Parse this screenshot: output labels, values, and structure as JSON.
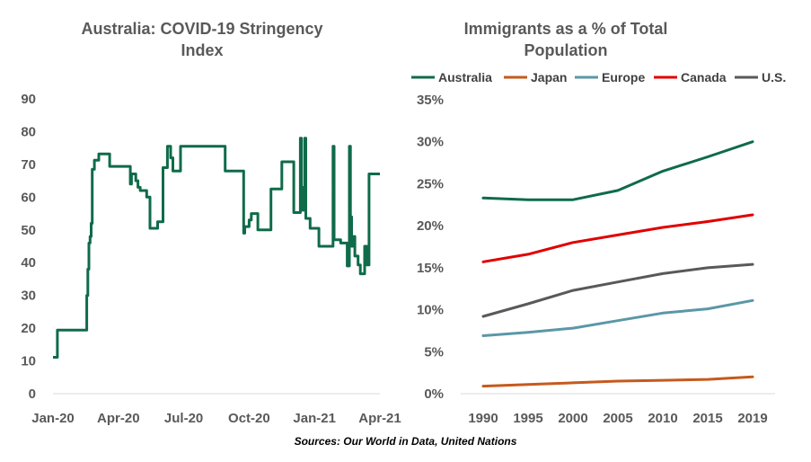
{
  "charts": {
    "source_note": "Sources: Our World in Data, United Nations"
  },
  "chart_data": [
    {
      "type": "line",
      "title": "Australia: COVID-19 Stringency Index",
      "title_lines": [
        "Australia: COVID-19 Stringency",
        "Index"
      ],
      "xlabel": "",
      "ylabel": "",
      "x_tick_labels": [
        "Jan-20",
        "Apr-20",
        "Jul-20",
        "Oct-20",
        "Jan-21",
        "Apr-21"
      ],
      "ylim": [
        0,
        90
      ],
      "y_ticks": [
        0,
        10,
        20,
        30,
        40,
        50,
        60,
        70,
        80,
        90
      ],
      "grid": false,
      "color": "#0f6b4a",
      "series": [
        {
          "x_months": [
            0.0,
            0.15,
            0.2,
            0.25,
            1.5,
            1.55,
            1.6,
            1.65,
            1.7,
            1.75,
            1.8,
            1.85,
            1.9,
            2.0,
            2.1,
            2.2,
            2.5,
            2.6,
            3.5,
            3.55,
            3.6,
            3.7,
            3.8,
            3.9,
            4.0,
            4.1,
            4.3,
            4.45,
            4.5,
            4.6,
            4.7,
            4.8,
            4.9,
            5.0,
            5.05,
            5.2,
            5.25,
            5.3,
            5.4,
            5.5,
            5.6,
            5.8,
            5.85,
            6.0,
            6.05,
            6.1,
            6.3,
            6.5,
            6.6,
            7.9,
            8.0,
            8.2,
            8.3,
            8.4,
            8.5,
            8.7,
            8.75,
            8.8,
            8.9,
            9.0,
            9.1,
            9.2,
            9.3,
            9.4,
            9.5,
            10.0,
            10.05,
            10.1,
            10.2,
            10.3,
            10.5,
            11.0,
            11.05,
            11.15,
            11.2,
            11.25,
            11.3,
            11.35,
            11.4,
            11.45,
            11.5,
            11.55,
            11.6,
            11.65,
            11.7,
            11.8,
            12.0,
            12.2,
            12.5,
            12.8,
            12.85,
            12.9,
            13.0,
            13.2,
            13.5,
            13.6,
            13.65,
            13.7,
            13.75,
            13.8,
            13.85,
            14.0,
            14.05,
            14.1,
            14.15,
            14.2,
            14.3,
            14.4,
            14.5,
            14.55,
            14.6,
            14.7,
            14.75,
            14.8,
            14.9,
            15.0
          ],
          "values": [
            11.1,
            11.1,
            19.4,
            19.4,
            19.4,
            30,
            38,
            46,
            48,
            52,
            68.5,
            68.5,
            71.3,
            71.3,
            73.2,
            73.2,
            73.2,
            69.4,
            69.4,
            64.0,
            67.1,
            67.1,
            65.0,
            63.0,
            62.0,
            62.0,
            60.0,
            50.5,
            50.5,
            50.5,
            50.5,
            52.5,
            52.5,
            52.5,
            69.0,
            69.0,
            75.5,
            75.5,
            72.0,
            68.0,
            68.0,
            68.0,
            75.5,
            75.5,
            75.5,
            75.5,
            75.5,
            75.5,
            75.5,
            68.0,
            68.0,
            68.0,
            68.0,
            68.0,
            68.0,
            68.0,
            49.0,
            51.0,
            51.0,
            53.0,
            55.0,
            55.0,
            55.0,
            50.0,
            50.0,
            62.5,
            62.5,
            62.5,
            62.5,
            62.5,
            70.8,
            70.8,
            55.3,
            55.3,
            55.3,
            55.3,
            55.3,
            78.0,
            63.0,
            56.0,
            56.0,
            78.0,
            53.5,
            53.5,
            53.5,
            50.5,
            50.5,
            45.0,
            45.0,
            45.0,
            75.5,
            47.0,
            47.0,
            46.0,
            39.0,
            75.5,
            54.0,
            45.0,
            48.0,
            48.0,
            42.0,
            39.3,
            39.3,
            36.6,
            36.6,
            36.6,
            45.0,
            39.3,
            67.1,
            67.1,
            67.1,
            67.1,
            67.1,
            67.1,
            67.1,
            67.1
          ]
        }
      ]
    },
    {
      "type": "line",
      "title": "Immigrants as a % of Total Population",
      "title_lines": [
        "Immigrants as a % of Total",
        "Population"
      ],
      "xlabel": "",
      "ylabel": "",
      "categories": [
        "1990",
        "1995",
        "2000",
        "2005",
        "2010",
        "2015",
        "2019"
      ],
      "ylim": [
        0,
        35
      ],
      "y_ticks": [
        0,
        5,
        10,
        15,
        20,
        25,
        30,
        35
      ],
      "y_tick_labels": [
        "0%",
        "5%",
        "10%",
        "15%",
        "20%",
        "25%",
        "30%",
        "35%"
      ],
      "grid": false,
      "legend_position": "top",
      "series": [
        {
          "name": "Australia",
          "color": "#0f6b4a",
          "values": [
            23.3,
            23.1,
            23.1,
            24.2,
            26.5,
            28.2,
            30.0
          ]
        },
        {
          "name": "Japan",
          "color": "#c55a1e",
          "values": [
            0.9,
            1.1,
            1.3,
            1.5,
            1.6,
            1.7,
            2.0
          ]
        },
        {
          "name": "Europe",
          "color": "#5b97a8",
          "values": [
            6.9,
            7.3,
            7.8,
            8.7,
            9.6,
            10.1,
            11.1
          ]
        },
        {
          "name": "Canada",
          "color": "#e00000",
          "values": [
            15.7,
            16.6,
            18.0,
            18.9,
            19.8,
            20.5,
            21.3
          ]
        },
        {
          "name": "U.S.",
          "color": "#595959",
          "values": [
            9.2,
            10.7,
            12.3,
            13.3,
            14.3,
            15.0,
            15.4
          ]
        }
      ]
    }
  ]
}
